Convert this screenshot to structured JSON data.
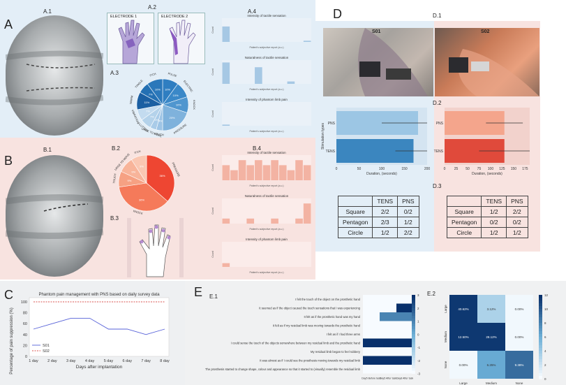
{
  "labels": {
    "A": "A",
    "B": "B",
    "C": "C",
    "D": "D",
    "E": "E",
    "A1": "A.1",
    "A2": "A.2",
    "A3": "A.3",
    "A4": "A.4",
    "B1": "B.1",
    "B2": "B.2",
    "B3": "B.3",
    "B4": "B.4",
    "D1": "D.1",
    "D2": "D.2",
    "D3": "D.3",
    "E1": "E.1",
    "E2": "E.2"
  },
  "electrodes": {
    "e1": "ELECTRODE 1",
    "e2": "ELECTRODE 2"
  },
  "a3_pie": {
    "slices": [
      {
        "label": "PULSE",
        "pct": "10%",
        "value": 10,
        "color": "#2f7ec1"
      },
      {
        "label": "ELECTRIC",
        "pct": "10%",
        "value": 10,
        "color": "#3a88c8"
      },
      {
        "label": "KNOCK",
        "pct": "10%",
        "value": 10,
        "color": "#5096cf"
      },
      {
        "label": "PRESSURE",
        "pct": "20%",
        "value": 20,
        "color": "#7fb2dc"
      },
      {
        "label": "TOUCH",
        "pct": "4%",
        "value": 4,
        "color": "#9ec4e5"
      },
      {
        "label": "URGE TO MOVE",
        "pct": "4%",
        "value": 4,
        "color": "#a9cbe8"
      },
      {
        "label": "FLUTTER",
        "pct": "7%",
        "value": 7,
        "color": "#b4d2ea"
      },
      {
        "label": "VIBRATION",
        "pct": "7%",
        "value": 7,
        "color": "#c3dbef"
      },
      {
        "label": "WARM",
        "pct": "11%",
        "value": 11,
        "color": "#1b5fa2"
      },
      {
        "label": "TINGLE",
        "pct": "7%",
        "value": 7,
        "color": "#2470b3"
      },
      {
        "label": "ITCH",
        "pct": "10%",
        "value": 10,
        "color": "#2b78ba"
      }
    ]
  },
  "a4": {
    "titles": [
      "Intensity of tactile sensation",
      "Naturalness of tactile sensation",
      "Intensity of phantom limb pain"
    ],
    "xlabel": "Patient's subjective report (a.u.)",
    "ylabel": "Count"
  },
  "b2_pie": {
    "slices": [
      {
        "label": "PRESSURE",
        "pct": "36%",
        "value": 36,
        "color": "#ee4632"
      },
      {
        "label": "KNOCK",
        "pct": "36%",
        "value": 36,
        "color": "#f57a5a"
      },
      {
        "label": "TOUCH",
        "pct": "9%",
        "value": 9,
        "color": "#f6a183"
      },
      {
        "label": "URGE TO MOVE",
        "pct": "9%",
        "value": 9,
        "color": "#f8b49a"
      },
      {
        "label": "ITCH",
        "pct": "9%",
        "value": 9,
        "color": "#fac7b2"
      }
    ]
  },
  "b4": {
    "titles": [
      "Intensity of tactile sensation",
      "Naturalness of tactile sensation",
      "Intensity of phantom limb pain"
    ],
    "xlabel": "Patient's subjective report (a.u.)",
    "ylabel": "Count"
  },
  "chart_data": [
    {
      "id": "C",
      "type": "line",
      "title": "Phantom pain management with PNS based on daily survey data",
      "xlabel": "Days after implantation",
      "ylabel": "Percentage of pain suppression (%)",
      "categories": [
        "1 day",
        "2 day",
        "3 day",
        "4 day",
        "5 day",
        "6 day",
        "7 day",
        "8 day"
      ],
      "ylim": [
        0,
        100
      ],
      "yticks": [
        0,
        20,
        40,
        60,
        80,
        100
      ],
      "series": [
        {
          "name": "S01",
          "color": "#5560d8",
          "values": [
            50,
            60,
            70,
            70,
            50,
            50,
            40,
            50
          ]
        },
        {
          "name": "S02",
          "color": "#d9534f",
          "dashed": true,
          "values": [
            100,
            100,
            100,
            100,
            100,
            100,
            100,
            100
          ]
        }
      ],
      "legend": "bottom-left"
    },
    {
      "id": "D2",
      "type": "bar",
      "orientation": "horizontal",
      "ylabel": "Stimulation types",
      "xlabel": "Duration, (seconds)",
      "panels": [
        {
          "name": "S01",
          "categories": [
            "PNS",
            "TENS"
          ],
          "values": [
            180,
            170
          ],
          "errors": [
            80,
            40
          ],
          "colors": [
            "#9cc6e4",
            "#3b86bf"
          ],
          "xlim": [
            0,
            200
          ],
          "xticks": [
            0,
            50,
            100,
            150,
            200
          ]
        },
        {
          "name": "S02",
          "categories": [
            "PNS",
            "TENS"
          ],
          "values": [
            130,
            130
          ],
          "errors": [
            40,
            55
          ],
          "colors": [
            "#f4a58c",
            "#e04a3b"
          ],
          "xlim": [
            0,
            185
          ],
          "xticks": [
            0,
            25,
            50,
            75,
            100,
            125,
            150,
            175
          ]
        }
      ]
    },
    {
      "id": "D3",
      "type": "table",
      "panels": [
        {
          "name": "S01",
          "columns": [
            "",
            "TENS",
            "PNS"
          ],
          "rows": [
            [
              "Square",
              "2/2",
              "0/2"
            ],
            [
              "Pentagon",
              "2/3",
              "1/2"
            ],
            [
              "Circle",
              "1/2",
              "2/2"
            ]
          ]
        },
        {
          "name": "S02",
          "columns": [
            "",
            "TENS",
            "PNS"
          ],
          "rows": [
            [
              "Square",
              "1/2",
              "2/2"
            ],
            [
              "Pentagon",
              "0/2",
              "0/2"
            ],
            [
              "Circle",
              "1/2",
              "1/2"
            ]
          ]
        }
      ]
    },
    {
      "id": "E1",
      "type": "heatmap",
      "rows": [
        "I felt the touch of the object on the prosthetic hand",
        "It seemed as if the object caused the touch sensations that I was experiencing",
        "It felt as if the prosthetic hand was my hand",
        "It felt as if my residual limb was moving towards the prosthetic hand",
        "I felt as if I had three arms",
        "I could sense the touch of the objects somewhere between my residual limb and the prosthetic hand",
        "My residual limb began to feel rubbery",
        "It was almost as if I could see the prosthesis moving towards my residual limb",
        "The prosthesis started to change shape, colour and appearance so that it started to (visually) resemble the residual limb"
      ],
      "columns": [
        "Day5 Before task",
        "Day5 After task",
        "Day8 After task"
      ],
      "values": [
        [
          -3,
          -3,
          -3
        ],
        [
          -3,
          -3,
          3
        ],
        [
          -3,
          1,
          1
        ],
        [
          -3,
          -3,
          -3
        ],
        [
          -3,
          -3,
          -3
        ],
        [
          3,
          3,
          3
        ],
        [
          -3,
          -3,
          -3
        ],
        [
          3,
          3,
          3
        ],
        [
          -3,
          -3,
          -3
        ]
      ],
      "colorbar": {
        "min": -3,
        "max": 3,
        "ticks": [
          3,
          2,
          1,
          0,
          -1,
          -2,
          -3
        ]
      }
    },
    {
      "id": "E2",
      "type": "heatmap",
      "rows": [
        "Large",
        "Medium",
        "None"
      ],
      "columns": [
        "Large",
        "Medium",
        "None"
      ],
      "values": [
        [
          40.62,
          3.12,
          0.0
        ],
        [
          12.5,
          28.12,
          0.0
        ],
        [
          0.0,
          6.25,
          9.38
        ]
      ],
      "cell_text": [
        [
          "40.62%",
          "3.12%",
          "0.00%"
        ],
        [
          "12.50%",
          "28.12%",
          "0.00%"
        ],
        [
          "0.00%",
          "6.25%",
          "9.38%"
        ]
      ],
      "colorbar": {
        "min": 0,
        "max": 12,
        "ticks": [
          12,
          10,
          8,
          6,
          4,
          2,
          0
        ]
      }
    }
  ],
  "d1": {
    "s01": "S01",
    "s02": "S02"
  },
  "d2": {
    "pns": "PNS",
    "tens": "TENS"
  }
}
